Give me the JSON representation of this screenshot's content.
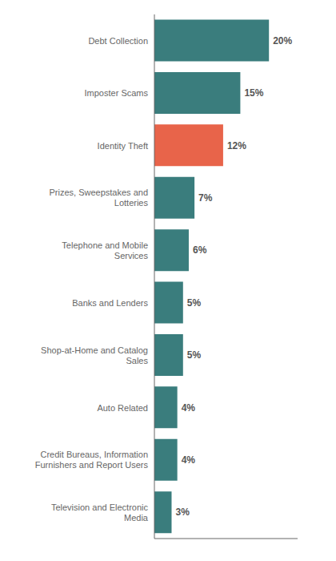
{
  "chart_data": {
    "type": "bar",
    "orientation": "horizontal",
    "categories": [
      "Television and Electronic\nMedia",
      "Credit Bureaus, Information\nFurnishers and Report Users",
      "Auto Related",
      "Shop-at-Home and Catalog\nSales",
      "Banks and Lenders",
      "Telephone and Mobile\nServices",
      "Prizes, Sweepstakes and\nLotteries",
      "Identity Theft",
      "Imposter Scams",
      "Debt Collection"
    ],
    "values": [
      3,
      4,
      4,
      5,
      5,
      6,
      7,
      12,
      15,
      20
    ],
    "value_labels": [
      "3%",
      "4%",
      "4%",
      "5%",
      "5%",
      "6%",
      "7%",
      "12%",
      "15%",
      "20%"
    ],
    "colors": [
      "#3a7d7d",
      "#3a7d7d",
      "#3a7d7d",
      "#3a7d7d",
      "#3a7d7d",
      "#3a7d7d",
      "#3a7d7d",
      "#e8644a",
      "#3a7d7d",
      "#3a7d7d"
    ],
    "xlim": [
      0,
      25
    ],
    "data_labels": true,
    "tick_labels": "y",
    "grid": false
  }
}
